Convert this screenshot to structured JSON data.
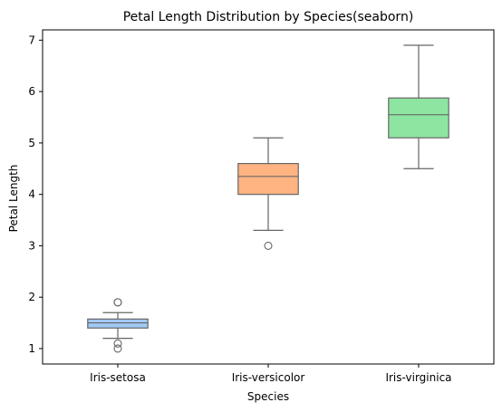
{
  "chart_data": {
    "type": "box",
    "title": "Petal Length Distribution by Species(seaborn)",
    "xlabel": "Species",
    "ylabel": "Petal Length",
    "ylim": [
      0.7,
      7.2
    ],
    "yticks": [
      1,
      2,
      3,
      4,
      5,
      6,
      7
    ],
    "grid": false,
    "categories": [
      "Iris-setosa",
      "Iris-versicolor",
      "Iris-virginica"
    ],
    "boxes": [
      {
        "category": "Iris-setosa",
        "color": "#a1c9f4",
        "whisker_low": 1.2,
        "q1": 1.4,
        "median": 1.5,
        "q3": 1.575,
        "whisker_high": 1.7,
        "outliers": [
          1.0,
          1.1,
          1.9,
          1.9
        ]
      },
      {
        "category": "Iris-versicolor",
        "color": "#ffb482",
        "whisker_low": 3.3,
        "q1": 4.0,
        "median": 4.35,
        "q3": 4.6,
        "whisker_high": 5.1,
        "outliers": [
          3.0
        ]
      },
      {
        "category": "Iris-virginica",
        "color": "#8de5a1",
        "whisker_low": 4.5,
        "q1": 5.1,
        "median": 5.55,
        "q3": 5.875,
        "whisker_high": 6.9,
        "outliers": []
      }
    ],
    "line_color": "#666666"
  }
}
